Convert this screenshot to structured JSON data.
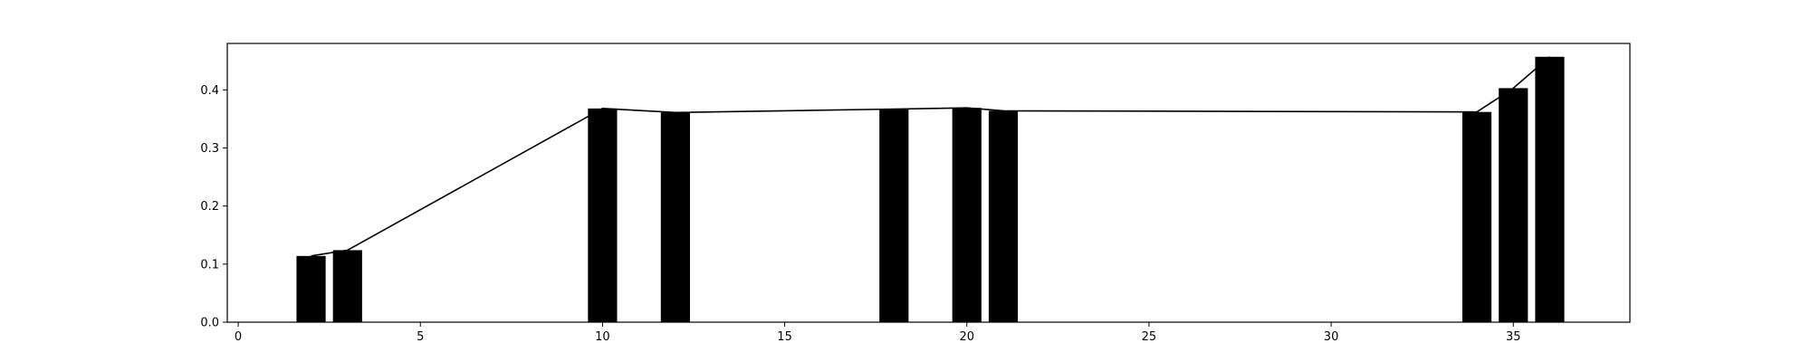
{
  "chart_data": {
    "type": "bar",
    "title": "",
    "xlabel": "",
    "ylabel": "",
    "xlim": [
      -0.3,
      38.2
    ],
    "ylim": [
      0.0,
      0.48
    ],
    "x_ticks": [
      0,
      5,
      10,
      15,
      20,
      25,
      30,
      35
    ],
    "y_ticks": [
      0.0,
      0.1,
      0.2,
      0.3,
      0.4
    ],
    "grid": false,
    "bar_color": "#000000",
    "line_color": "#000000",
    "x": [
      2,
      3,
      10,
      12,
      18,
      20,
      21,
      34,
      35,
      36
    ],
    "values": [
      0.114,
      0.124,
      0.368,
      0.361,
      0.367,
      0.369,
      0.364,
      0.362,
      0.403,
      0.457
    ],
    "bar_width": 0.8
  }
}
